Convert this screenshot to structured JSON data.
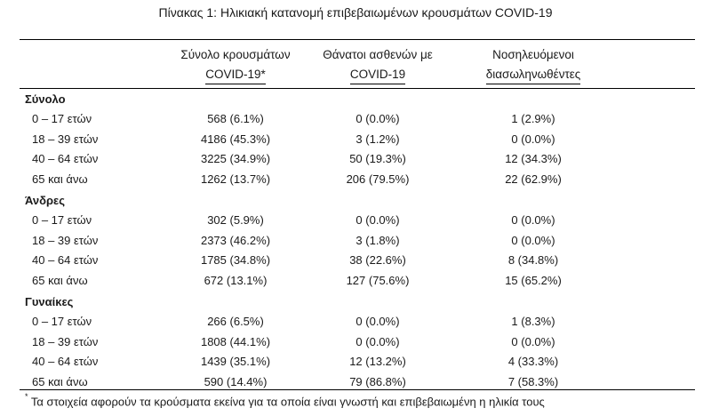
{
  "title": "Πίνακας 1: Ηλικιακή κατανομή επιβεβαιωμένων κρουσμάτων COVID-19",
  "headers": {
    "col1": [
      "Σύνολο κρουσμάτων",
      "COVID-19*"
    ],
    "col2": [
      "Θάνατοι ασθενών με",
      "COVID-19"
    ],
    "col3": [
      "Νοσηλευόμενοι",
      "διασωληνωθέντες"
    ]
  },
  "groups": [
    {
      "name": "Σύνολο",
      "rows": [
        {
          "age": "0 – 17 ετών",
          "cases": "568 (6.1%)",
          "deaths": "0 (0.0%)",
          "intubated": "1 (2.9%)"
        },
        {
          "age": "18 – 39 ετών",
          "cases": "4186 (45.3%)",
          "deaths": "3 (1.2%)",
          "intubated": "0 (0.0%)"
        },
        {
          "age": "40 – 64 ετών",
          "cases": "3225 (34.9%)",
          "deaths": "50 (19.3%)",
          "intubated": "12 (34.3%)"
        },
        {
          "age": "65 και άνω",
          "cases": "1262 (13.7%)",
          "deaths": "206 (79.5%)",
          "intubated": "22 (62.9%)"
        }
      ]
    },
    {
      "name": "Άνδρες",
      "rows": [
        {
          "age": "0 – 17 ετών",
          "cases": "302 (5.9%)",
          "deaths": "0 (0.0%)",
          "intubated": "0 (0.0%)"
        },
        {
          "age": "18 – 39 ετών",
          "cases": "2373 (46.2%)",
          "deaths": "3 (1.8%)",
          "intubated": "0 (0.0%)"
        },
        {
          "age": "40 – 64 ετών",
          "cases": "1785 (34.8%)",
          "deaths": "38 (22.6%)",
          "intubated": "8 (34.8%)"
        },
        {
          "age": "65 και άνω",
          "cases": "672 (13.1%)",
          "deaths": "127 (75.6%)",
          "intubated": "15 (65.2%)"
        }
      ]
    },
    {
      "name": "Γυναίκες",
      "rows": [
        {
          "age": "0 – 17 ετών",
          "cases": "266 (6.5%)",
          "deaths": "0 (0.0%)",
          "intubated": "1 (8.3%)"
        },
        {
          "age": "18 – 39 ετών",
          "cases": "1808 (44.1%)",
          "deaths": "0 (0.0%)",
          "intubated": "0 (0.0%)"
        },
        {
          "age": "40 – 64 ετών",
          "cases": "1439 (35.1%)",
          "deaths": "12 (13.2%)",
          "intubated": "4 (33.3%)"
        },
        {
          "age": "65 και άνω",
          "cases": "590 (14.4%)",
          "deaths": "79 (86.8%)",
          "intubated": "7 (58.3%)"
        }
      ]
    }
  ],
  "footnote": {
    "marker": "*",
    "text": "Τα στοιχεία αφορούν τα κρούσματα εκείνα για τα οποία είναι γνωστή και επιβεβαιωμένη η ηλικία τους"
  }
}
